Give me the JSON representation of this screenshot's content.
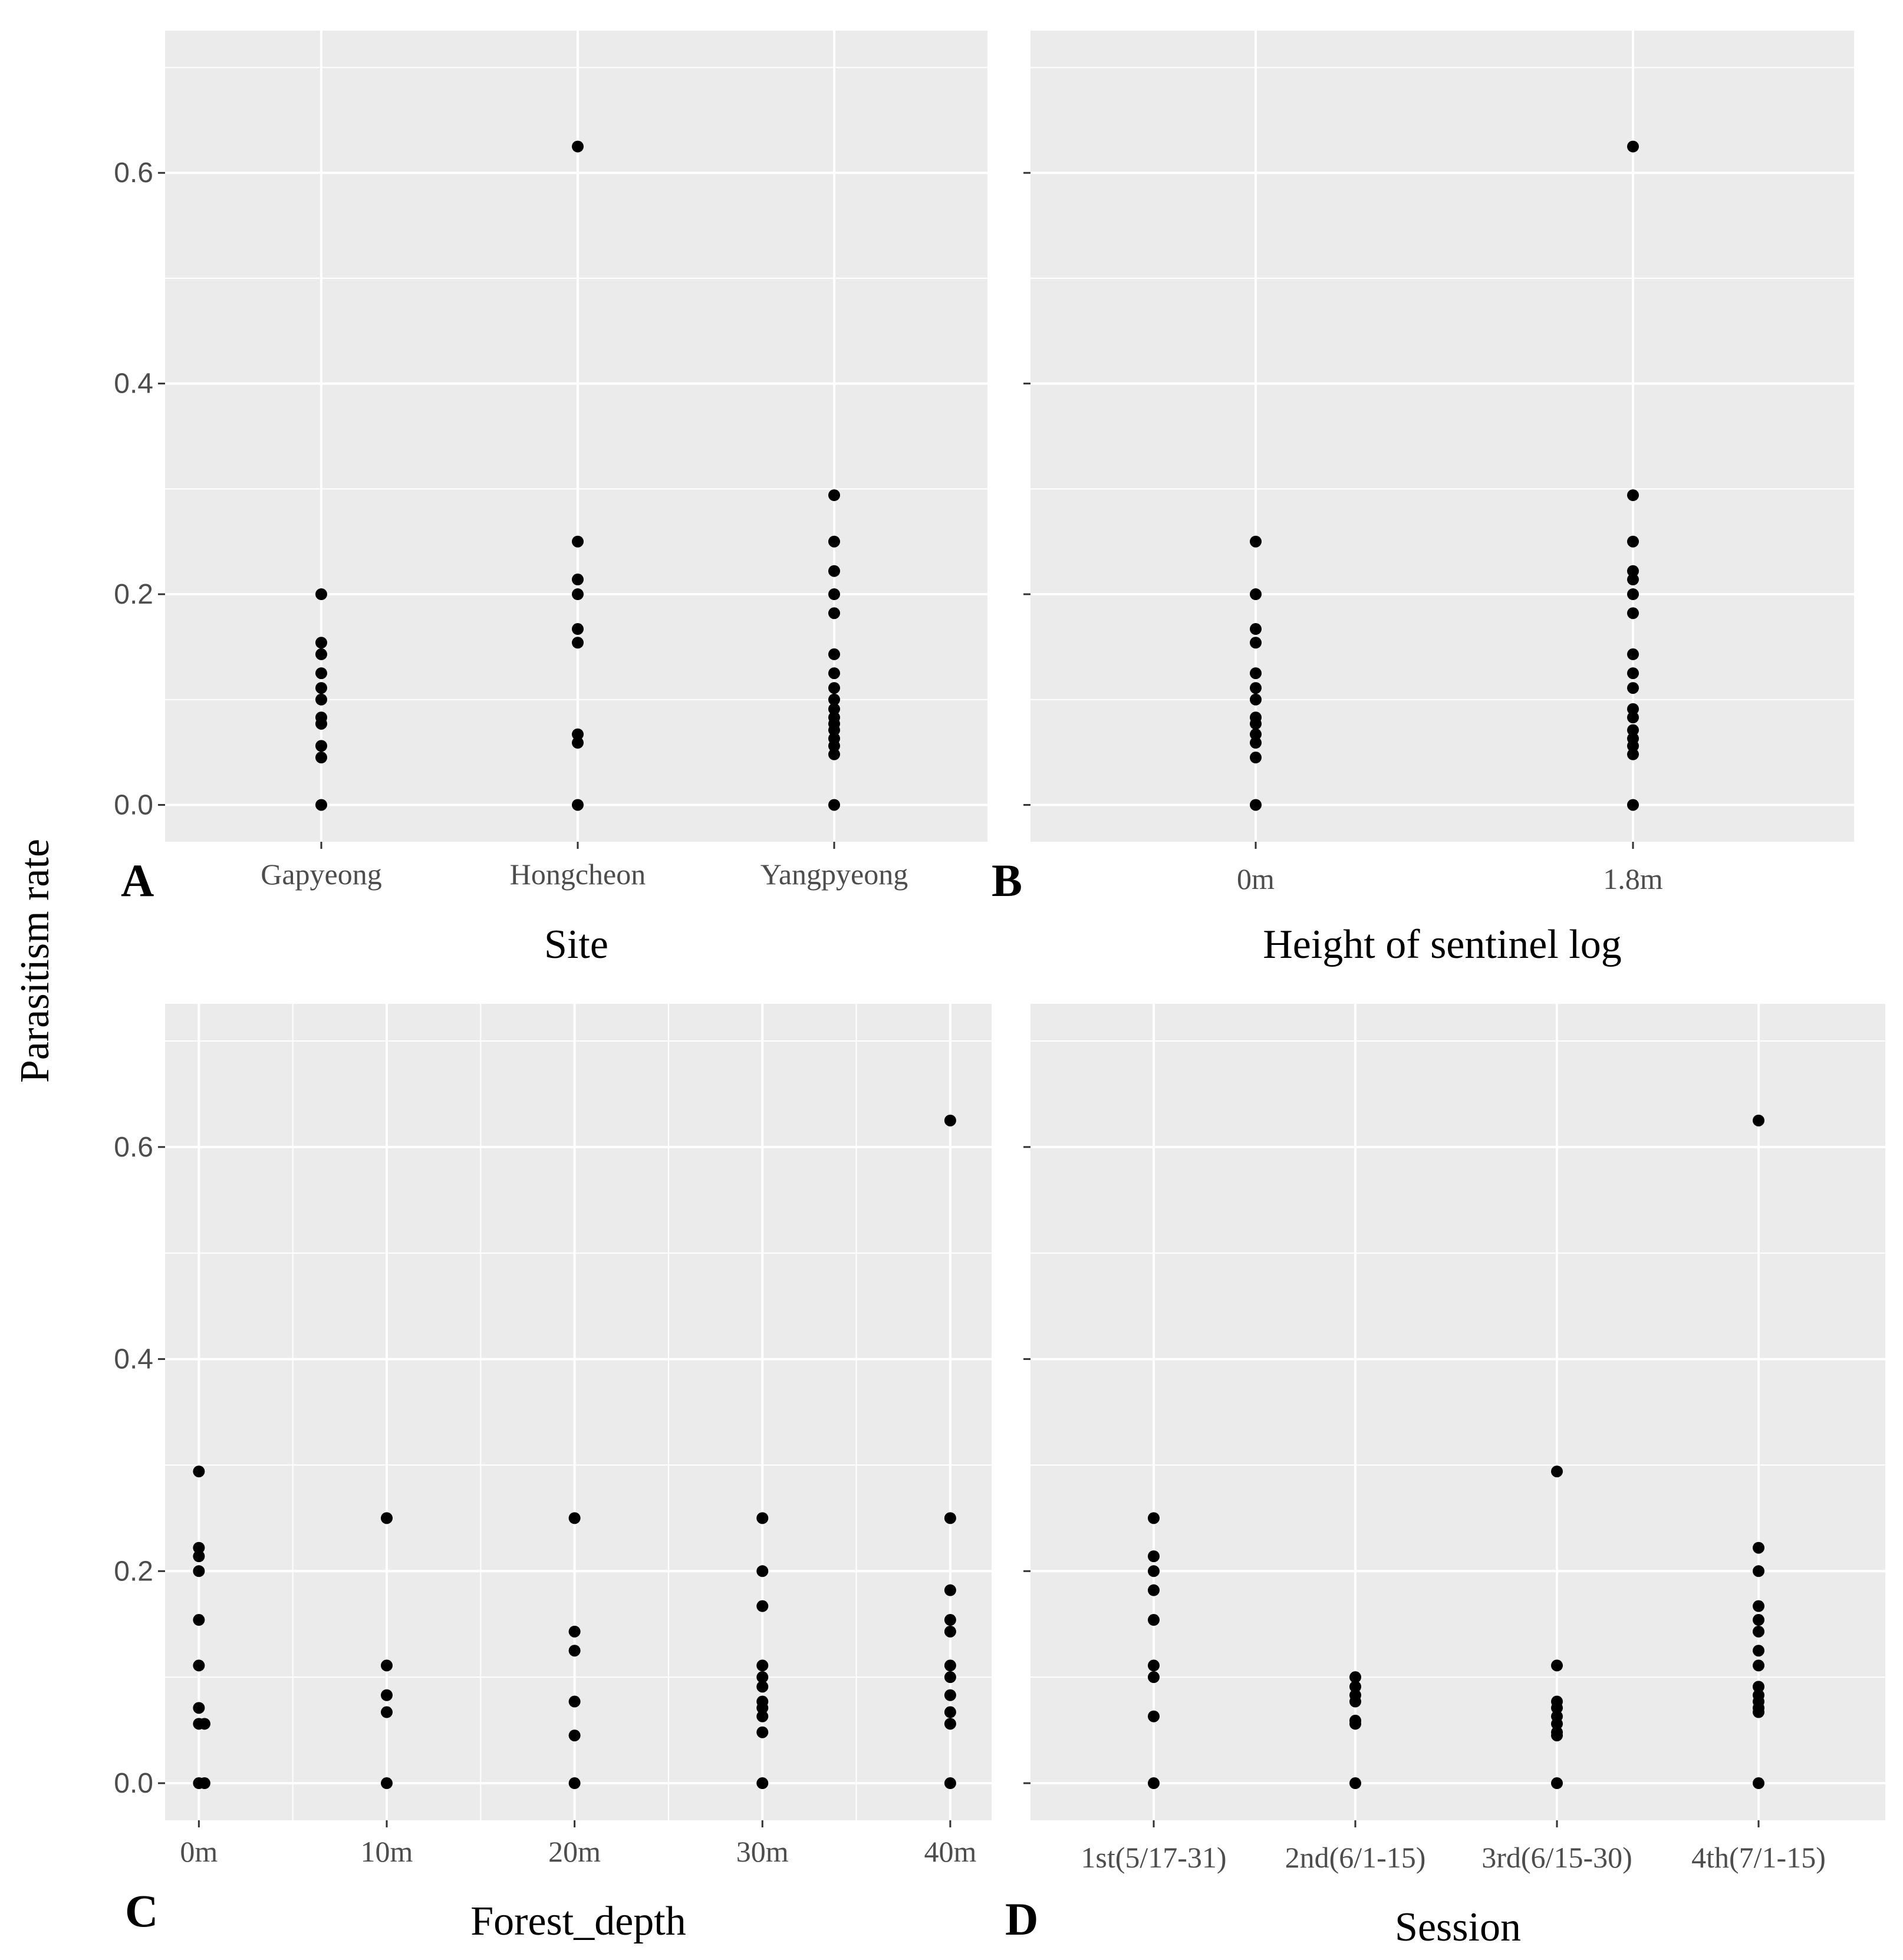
{
  "figure": {
    "shared_ylabel": "Parasitism rate"
  },
  "chart_data": [
    {
      "id": "A",
      "type": "scatter",
      "panel_label": "A",
      "xlabel": "Site",
      "ylabel": "Parasitism rate",
      "categories": [
        "Gapyeong",
        "Hongcheon",
        "Yangpyeong"
      ],
      "ylim": [
        -0.035,
        0.735
      ],
      "yticks": [
        0.0,
        0.2,
        0.4,
        0.6
      ],
      "ytick_labels": [
        "0.0",
        "0.2",
        "0.4",
        "0.6"
      ],
      "show_ytick_labels": true,
      "grid": true,
      "points": [
        {
          "x": "Gapyeong",
          "y": 0.2
        },
        {
          "x": "Gapyeong",
          "y": 0.154
        },
        {
          "x": "Gapyeong",
          "y": 0.143
        },
        {
          "x": "Gapyeong",
          "y": 0.125
        },
        {
          "x": "Gapyeong",
          "y": 0.111
        },
        {
          "x": "Gapyeong",
          "y": 0.1
        },
        {
          "x": "Gapyeong",
          "y": 0.083
        },
        {
          "x": "Gapyeong",
          "y": 0.077
        },
        {
          "x": "Gapyeong",
          "y": 0.056
        },
        {
          "x": "Gapyeong",
          "y": 0.045
        },
        {
          "x": "Gapyeong",
          "y": 0.0
        },
        {
          "x": "Hongcheon",
          "y": 0.625
        },
        {
          "x": "Hongcheon",
          "y": 0.25
        },
        {
          "x": "Hongcheon",
          "y": 0.214
        },
        {
          "x": "Hongcheon",
          "y": 0.2
        },
        {
          "x": "Hongcheon",
          "y": 0.167
        },
        {
          "x": "Hongcheon",
          "y": 0.154
        },
        {
          "x": "Hongcheon",
          "y": 0.067
        },
        {
          "x": "Hongcheon",
          "y": 0.059
        },
        {
          "x": "Hongcheon",
          "y": 0.0
        },
        {
          "x": "Yangpyeong",
          "y": 0.294
        },
        {
          "x": "Yangpyeong",
          "y": 0.25
        },
        {
          "x": "Yangpyeong",
          "y": 0.222
        },
        {
          "x": "Yangpyeong",
          "y": 0.2
        },
        {
          "x": "Yangpyeong",
          "y": 0.182
        },
        {
          "x": "Yangpyeong",
          "y": 0.143
        },
        {
          "x": "Yangpyeong",
          "y": 0.125
        },
        {
          "x": "Yangpyeong",
          "y": 0.111
        },
        {
          "x": "Yangpyeong",
          "y": 0.1
        },
        {
          "x": "Yangpyeong",
          "y": 0.091
        },
        {
          "x": "Yangpyeong",
          "y": 0.083
        },
        {
          "x": "Yangpyeong",
          "y": 0.077
        },
        {
          "x": "Yangpyeong",
          "y": 0.071
        },
        {
          "x": "Yangpyeong",
          "y": 0.063
        },
        {
          "x": "Yangpyeong",
          "y": 0.056
        },
        {
          "x": "Yangpyeong",
          "y": 0.048
        },
        {
          "x": "Yangpyeong",
          "y": 0.0
        }
      ]
    },
    {
      "id": "B",
      "type": "scatter",
      "panel_label": "B",
      "xlabel": "Height of sentinel log",
      "ylabel": "Parasitism rate",
      "categories": [
        "0m",
        "1.8m"
      ],
      "ylim": [
        -0.035,
        0.735
      ],
      "yticks": [
        0.0,
        0.2,
        0.4,
        0.6
      ],
      "ytick_labels": [
        "0.0",
        "0.2",
        "0.4",
        "0.6"
      ],
      "show_ytick_labels": false,
      "grid": true,
      "points": [
        {
          "x": "0m",
          "y": 0.25
        },
        {
          "x": "0m",
          "y": 0.2
        },
        {
          "x": "0m",
          "y": 0.167
        },
        {
          "x": "0m",
          "y": 0.154
        },
        {
          "x": "0m",
          "y": 0.125
        },
        {
          "x": "0m",
          "y": 0.111
        },
        {
          "x": "0m",
          "y": 0.1
        },
        {
          "x": "0m",
          "y": 0.083
        },
        {
          "x": "0m",
          "y": 0.077
        },
        {
          "x": "0m",
          "y": 0.067
        },
        {
          "x": "0m",
          "y": 0.059
        },
        {
          "x": "0m",
          "y": 0.045
        },
        {
          "x": "0m",
          "y": 0.0
        },
        {
          "x": "1.8m",
          "y": 0.625
        },
        {
          "x": "1.8m",
          "y": 0.294
        },
        {
          "x": "1.8m",
          "y": 0.25
        },
        {
          "x": "1.8m",
          "y": 0.222
        },
        {
          "x": "1.8m",
          "y": 0.214
        },
        {
          "x": "1.8m",
          "y": 0.2
        },
        {
          "x": "1.8m",
          "y": 0.182
        },
        {
          "x": "1.8m",
          "y": 0.143
        },
        {
          "x": "1.8m",
          "y": 0.125
        },
        {
          "x": "1.8m",
          "y": 0.111
        },
        {
          "x": "1.8m",
          "y": 0.091
        },
        {
          "x": "1.8m",
          "y": 0.083
        },
        {
          "x": "1.8m",
          "y": 0.071
        },
        {
          "x": "1.8m",
          "y": 0.063
        },
        {
          "x": "1.8m",
          "y": 0.056
        },
        {
          "x": "1.8m",
          "y": 0.048
        },
        {
          "x": "1.8m",
          "y": 0.0
        }
      ]
    },
    {
      "id": "C",
      "type": "scatter",
      "panel_label": "C",
      "xlabel": "Forest_depth",
      "ylabel": "Parasitism rate",
      "x_numeric": true,
      "xlim": [
        -1.8,
        42.2
      ],
      "xticks": [
        0,
        10,
        20,
        30,
        40
      ],
      "xtick_labels": [
        "0m",
        "10m",
        "20m",
        "30m",
        "40m"
      ],
      "x_minor_ticks": [
        5,
        15,
        25,
        35
      ],
      "ylim": [
        -0.035,
        0.735
      ],
      "yticks": [
        0.0,
        0.2,
        0.4,
        0.6
      ],
      "ytick_labels": [
        "0.0",
        "0.2",
        "0.4",
        "0.6"
      ],
      "show_ytick_labels": true,
      "grid": true,
      "points": [
        {
          "x": 0,
          "y": 0.294
        },
        {
          "x": 0,
          "y": 0.222
        },
        {
          "x": 0,
          "y": 0.214
        },
        {
          "x": 0,
          "y": 0.2
        },
        {
          "x": 0,
          "y": 0.154
        },
        {
          "x": 0,
          "y": 0.111
        },
        {
          "x": 0,
          "y": 0.071
        },
        {
          "x": 0,
          "y": 0.056
        },
        {
          "x": 0.3,
          "y": 0.056
        },
        {
          "x": 0,
          "y": 0.0
        },
        {
          "x": 0.3,
          "y": 0.0
        },
        {
          "x": 10,
          "y": 0.25
        },
        {
          "x": 10,
          "y": 0.111
        },
        {
          "x": 10,
          "y": 0.083
        },
        {
          "x": 10,
          "y": 0.067
        },
        {
          "x": 10,
          "y": 0.0
        },
        {
          "x": 20,
          "y": 0.25
        },
        {
          "x": 20,
          "y": 0.143
        },
        {
          "x": 20,
          "y": 0.125
        },
        {
          "x": 20,
          "y": 0.077
        },
        {
          "x": 20,
          "y": 0.045
        },
        {
          "x": 20,
          "y": 0.0
        },
        {
          "x": 30,
          "y": 0.25
        },
        {
          "x": 30,
          "y": 0.2
        },
        {
          "x": 30,
          "y": 0.167
        },
        {
          "x": 30,
          "y": 0.111
        },
        {
          "x": 30,
          "y": 0.1
        },
        {
          "x": 30,
          "y": 0.091
        },
        {
          "x": 30,
          "y": 0.077
        },
        {
          "x": 30,
          "y": 0.071
        },
        {
          "x": 30,
          "y": 0.063
        },
        {
          "x": 30,
          "y": 0.048
        },
        {
          "x": 30,
          "y": 0.0
        },
        {
          "x": 40,
          "y": 0.625
        },
        {
          "x": 40,
          "y": 0.25
        },
        {
          "x": 40,
          "y": 0.182
        },
        {
          "x": 40,
          "y": 0.154
        },
        {
          "x": 40,
          "y": 0.143
        },
        {
          "x": 40,
          "y": 0.111
        },
        {
          "x": 40,
          "y": 0.1
        },
        {
          "x": 40,
          "y": 0.083
        },
        {
          "x": 40,
          "y": 0.067
        },
        {
          "x": 40,
          "y": 0.056
        },
        {
          "x": 40,
          "y": 0.0
        }
      ]
    },
    {
      "id": "D",
      "type": "scatter",
      "panel_label": "D",
      "xlabel": "Session",
      "ylabel": "Parasitism rate",
      "categories": [
        "1st(5/17-31)",
        "2nd(6/1-15)",
        "3rd(6/15-30)",
        "4th(7/1-15)"
      ],
      "ylim": [
        -0.035,
        0.735
      ],
      "yticks": [
        0.0,
        0.2,
        0.4,
        0.6
      ],
      "ytick_labels": [
        "0.0",
        "0.2",
        "0.4",
        "0.6"
      ],
      "show_ytick_labels": false,
      "grid": true,
      "points": [
        {
          "x": "1st(5/17-31)",
          "y": 0.25
        },
        {
          "x": "1st(5/17-31)",
          "y": 0.214
        },
        {
          "x": "1st(5/17-31)",
          "y": 0.2
        },
        {
          "x": "1st(5/17-31)",
          "y": 0.182
        },
        {
          "x": "1st(5/17-31)",
          "y": 0.154
        },
        {
          "x": "1st(5/17-31)",
          "y": 0.111
        },
        {
          "x": "1st(5/17-31)",
          "y": 0.1
        },
        {
          "x": "1st(5/17-31)",
          "y": 0.063
        },
        {
          "x": "1st(5/17-31)",
          "y": 0.0
        },
        {
          "x": "2nd(6/1-15)",
          "y": 0.1
        },
        {
          "x": "2nd(6/1-15)",
          "y": 0.091
        },
        {
          "x": "2nd(6/1-15)",
          "y": 0.083
        },
        {
          "x": "2nd(6/1-15)",
          "y": 0.077
        },
        {
          "x": "2nd(6/1-15)",
          "y": 0.059
        },
        {
          "x": "2nd(6/1-15)",
          "y": 0.056
        },
        {
          "x": "2nd(6/1-15)",
          "y": 0.0
        },
        {
          "x": "3rd(6/15-30)",
          "y": 0.294
        },
        {
          "x": "3rd(6/15-30)",
          "y": 0.111
        },
        {
          "x": "3rd(6/15-30)",
          "y": 0.077
        },
        {
          "x": "3rd(6/15-30)",
          "y": 0.071
        },
        {
          "x": "3rd(6/15-30)",
          "y": 0.063
        },
        {
          "x": "3rd(6/15-30)",
          "y": 0.056
        },
        {
          "x": "3rd(6/15-30)",
          "y": 0.048
        },
        {
          "x": "3rd(6/15-30)",
          "y": 0.045
        },
        {
          "x": "3rd(6/15-30)",
          "y": 0.0
        },
        {
          "x": "4th(7/1-15)",
          "y": 0.625
        },
        {
          "x": "4th(7/1-15)",
          "y": 0.222
        },
        {
          "x": "4th(7/1-15)",
          "y": 0.2
        },
        {
          "x": "4th(7/1-15)",
          "y": 0.167
        },
        {
          "x": "4th(7/1-15)",
          "y": 0.154
        },
        {
          "x": "4th(7/1-15)",
          "y": 0.143
        },
        {
          "x": "4th(7/1-15)",
          "y": 0.125
        },
        {
          "x": "4th(7/1-15)",
          "y": 0.111
        },
        {
          "x": "4th(7/1-15)",
          "y": 0.091
        },
        {
          "x": "4th(7/1-15)",
          "y": 0.083
        },
        {
          "x": "4th(7/1-15)",
          "y": 0.077
        },
        {
          "x": "4th(7/1-15)",
          "y": 0.071
        },
        {
          "x": "4th(7/1-15)",
          "y": 0.067
        },
        {
          "x": "4th(7/1-15)",
          "y": 0.0
        }
      ]
    }
  ]
}
